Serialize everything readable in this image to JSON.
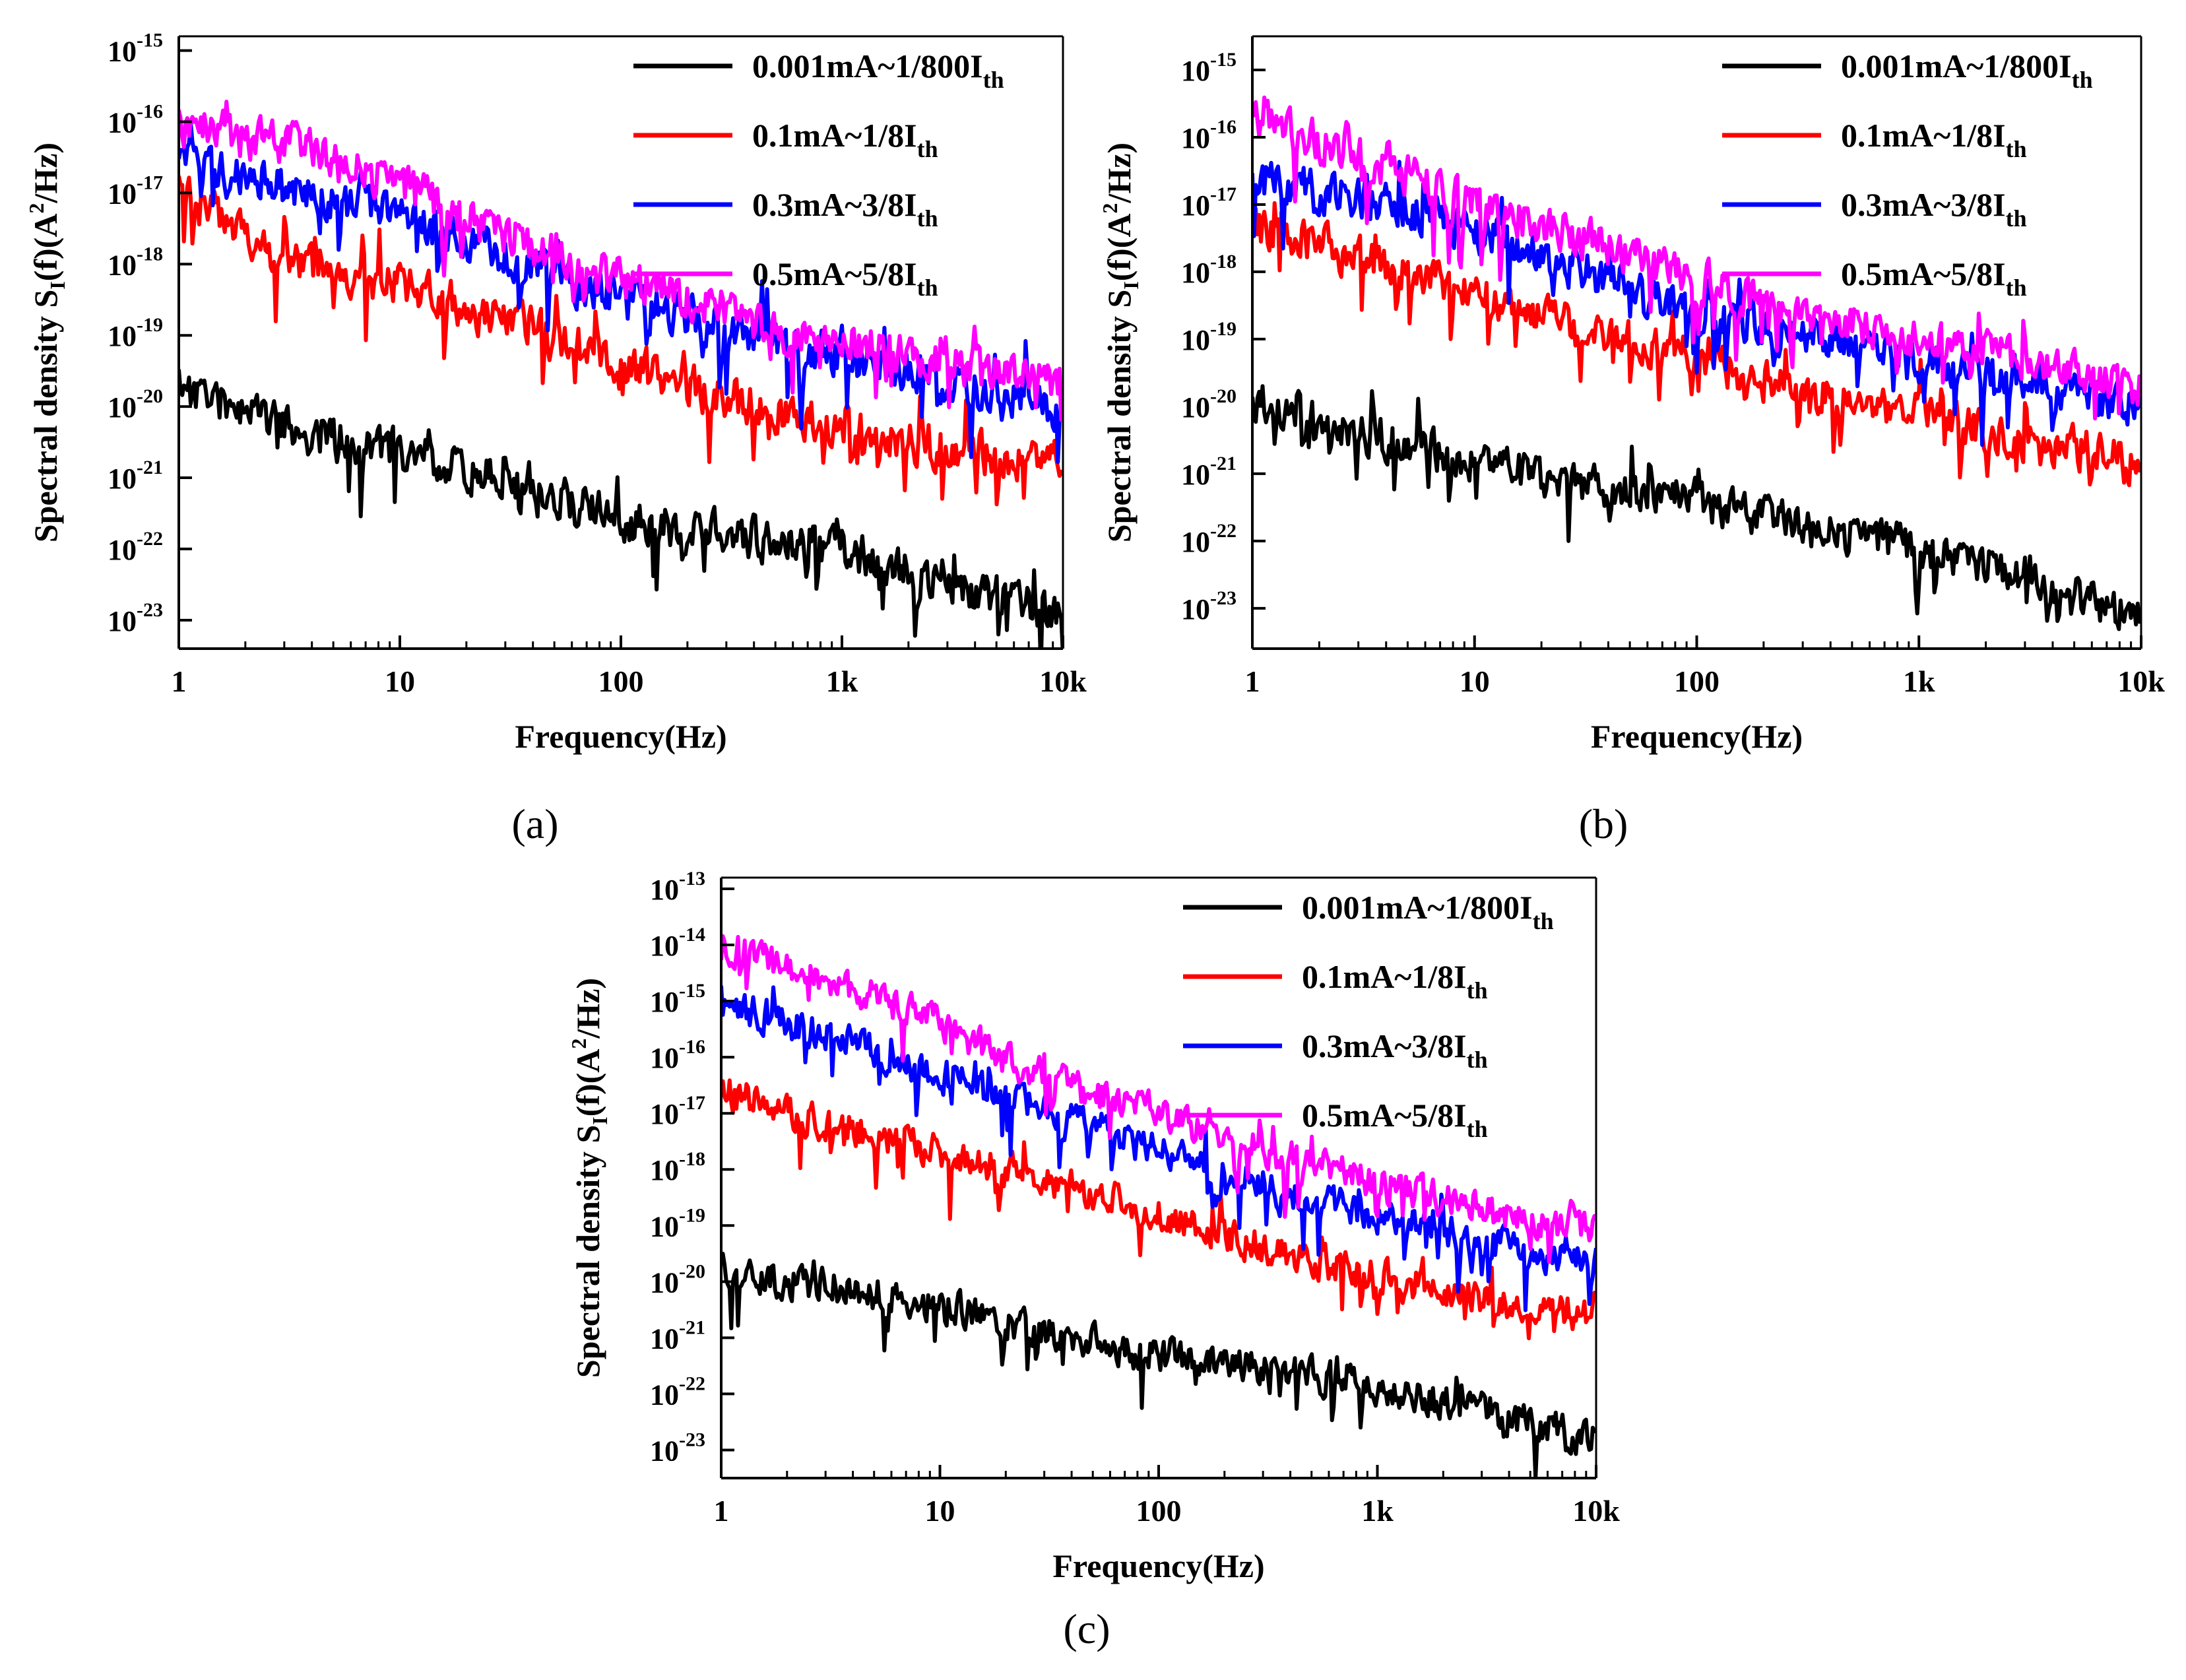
{
  "figure": {
    "panels": [
      "(a)",
      "(b)",
      "(c)"
    ]
  },
  "chart_data": [
    {
      "panel": "(a)",
      "type": "line",
      "title": "",
      "xlabel": "Frequency(Hz)",
      "ylabel": "Spectral density S_I(f)(A^2/Hz)",
      "xscale": "log",
      "yscale": "log",
      "xlim": [
        1,
        10000
      ],
      "ylim_exp": [
        -23.4,
        -14.8
      ],
      "x_ticks": [
        {
          "v": 1,
          "label": "1"
        },
        {
          "v": 10,
          "label": "10"
        },
        {
          "v": 100,
          "label": "100"
        },
        {
          "v": 1000,
          "label": "1k"
        },
        {
          "v": 10000,
          "label": "10k"
        }
      ],
      "y_tick_exponents": [
        -23,
        -22,
        -21,
        -20,
        -19,
        -18,
        -17,
        -16,
        -15
      ],
      "legend_position": "top-right",
      "series": [
        {
          "name": "0.001mA~1/800I",
          "sub": "th",
          "color": "#000000",
          "log10_f": [
            0,
            0.5,
            1,
            1.5,
            2,
            2.5,
            3,
            3.5,
            4
          ],
          "log10_S": [
            -19.7,
            -20.3,
            -20.6,
            -21.1,
            -21.6,
            -21.8,
            -22.0,
            -22.5,
            -22.9
          ],
          "noise_seed": 11
        },
        {
          "name": "0.1mA~1/8I",
          "sub": "th",
          "color": "#ff0000",
          "log10_f": [
            0,
            0.5,
            1,
            1.5,
            2,
            2.5,
            3,
            3.5,
            4
          ],
          "log10_S": [
            -17.0,
            -17.9,
            -18.3,
            -18.8,
            -19.4,
            -19.9,
            -20.3,
            -20.6,
            -20.8
          ],
          "noise_seed": 23
        },
        {
          "name": "0.3mA~3/8I",
          "sub": "th",
          "color": "#0000ff",
          "log10_f": [
            0,
            0.5,
            1,
            1.5,
            2,
            2.5,
            3,
            3.5,
            4
          ],
          "log10_S": [
            -16.6,
            -16.9,
            -17.3,
            -17.9,
            -18.5,
            -18.9,
            -19.3,
            -19.7,
            -20.0
          ],
          "noise_seed": 37
        },
        {
          "name": "0.5mA~5/8I",
          "sub": "th",
          "color": "#ff00ff",
          "log10_f": [
            0,
            0.5,
            1,
            1.5,
            2,
            2.5,
            3,
            3.5,
            4
          ],
          "log10_S": [
            -16.1,
            -16.3,
            -16.9,
            -17.6,
            -18.2,
            -18.7,
            -19.1,
            -19.4,
            -19.7
          ],
          "noise_seed": 41
        }
      ]
    },
    {
      "panel": "(b)",
      "type": "line",
      "title": "",
      "xlabel": "Frequency(Hz)",
      "ylabel": "Spectral density S_I(f)(A^2/Hz)",
      "xscale": "log",
      "yscale": "log",
      "xlim": [
        1,
        10000
      ],
      "ylim_exp": [
        -23.6,
        -14.5
      ],
      "x_ticks": [
        {
          "v": 1,
          "label": "1"
        },
        {
          "v": 10,
          "label": "10"
        },
        {
          "v": 100,
          "label": "100"
        },
        {
          "v": 1000,
          "label": "1k"
        },
        {
          "v": 10000,
          "label": "10k"
        }
      ],
      "y_tick_exponents": [
        -23,
        -22,
        -21,
        -20,
        -19,
        -18,
        -17,
        -16,
        -15
      ],
      "legend_position": "top-right",
      "series": [
        {
          "name": "0.001mA~1/800I",
          "sub": "th",
          "color": "#000000",
          "log10_f": [
            0,
            0.5,
            1,
            1.5,
            2,
            2.5,
            3,
            3.5,
            4
          ],
          "log10_S": [
            -19.9,
            -20.4,
            -20.8,
            -21.2,
            -21.4,
            -21.8,
            -22.1,
            -22.5,
            -23.2
          ],
          "noise_seed": 13
        },
        {
          "name": "0.1mA~1/8I",
          "sub": "th",
          "color": "#ff0000",
          "log10_f": [
            0,
            0.5,
            1,
            1.5,
            2,
            2.5,
            3,
            3.5,
            4
          ],
          "log10_S": [
            -17.3,
            -17.8,
            -18.3,
            -18.8,
            -19.3,
            -19.8,
            -20.1,
            -20.5,
            -20.8
          ],
          "noise_seed": 29
        },
        {
          "name": "0.3mA~3/8I",
          "sub": "th",
          "color": "#0000ff",
          "log10_f": [
            0,
            0.5,
            1,
            1.5,
            2,
            2.5,
            3,
            3.5,
            4
          ],
          "log10_S": [
            -16.6,
            -16.9,
            -17.4,
            -18.0,
            -18.6,
            -18.9,
            -19.3,
            -19.6,
            -20.0
          ],
          "noise_seed": 31
        },
        {
          "name": "0.5mA~5/8I",
          "sub": "th",
          "color": "#ff00ff",
          "log10_f": [
            0,
            0.5,
            1,
            1.5,
            2,
            2.5,
            3,
            3.5,
            4
          ],
          "log10_S": [
            -15.7,
            -16.3,
            -17.0,
            -17.5,
            -18.1,
            -18.6,
            -19.0,
            -19.3,
            -19.7
          ],
          "noise_seed": 43
        }
      ]
    },
    {
      "panel": "(c)",
      "type": "line",
      "title": "",
      "xlabel": "Frequency(Hz)",
      "ylabel": "Spectral density S_I(f)(A^2/Hz)",
      "xscale": "log",
      "yscale": "log",
      "xlim": [
        1,
        10000
      ],
      "ylim_exp": [
        -23.5,
        -12.8
      ],
      "x_ticks": [
        {
          "v": 1,
          "label": "1"
        },
        {
          "v": 10,
          "label": "10"
        },
        {
          "v": 100,
          "label": "100"
        },
        {
          "v": 1000,
          "label": "1k"
        },
        {
          "v": 10000,
          "label": "10k"
        }
      ],
      "y_tick_exponents": [
        -23,
        -22,
        -21,
        -20,
        -19,
        -18,
        -17,
        -16,
        -15,
        -14,
        -13
      ],
      "legend_position": "top-right",
      "series": [
        {
          "name": "0.001mA~1/800I",
          "sub": "th",
          "color": "#000000",
          "log10_f": [
            0,
            0.5,
            1,
            1.5,
            2,
            2.5,
            3,
            3.5,
            4
          ],
          "log10_S": [
            -19.8,
            -20.1,
            -20.4,
            -20.9,
            -21.3,
            -21.5,
            -21.9,
            -22.3,
            -22.8
          ],
          "noise_seed": 17
        },
        {
          "name": "0.1mA~1/8I",
          "sub": "th",
          "color": "#ff0000",
          "log10_f": [
            0,
            0.5,
            1,
            1.5,
            2,
            2.5,
            3,
            3.5,
            4
          ],
          "log10_S": [
            -16.6,
            -17.2,
            -17.7,
            -18.2,
            -18.8,
            -19.4,
            -19.9,
            -20.3,
            -20.6
          ],
          "noise_seed": 19
        },
        {
          "name": "0.3mA~3/8I",
          "sub": "th",
          "color": "#0000ff",
          "log10_f": [
            0,
            0.5,
            1,
            1.5,
            2,
            2.5,
            3,
            3.5,
            4
          ],
          "log10_S": [
            -15.0,
            -15.6,
            -16.3,
            -17.0,
            -17.6,
            -18.3,
            -18.8,
            -19.3,
            -19.7
          ],
          "noise_seed": 47
        },
        {
          "name": "0.5mA~5/8I",
          "sub": "th",
          "color": "#ff00ff",
          "log10_f": [
            0,
            0.5,
            1,
            1.5,
            2,
            2.5,
            3,
            3.5,
            4
          ],
          "log10_S": [
            -14.0,
            -14.6,
            -15.4,
            -16.4,
            -17.0,
            -17.7,
            -18.2,
            -18.7,
            -19.1
          ],
          "noise_seed": 53
        }
      ]
    }
  ]
}
